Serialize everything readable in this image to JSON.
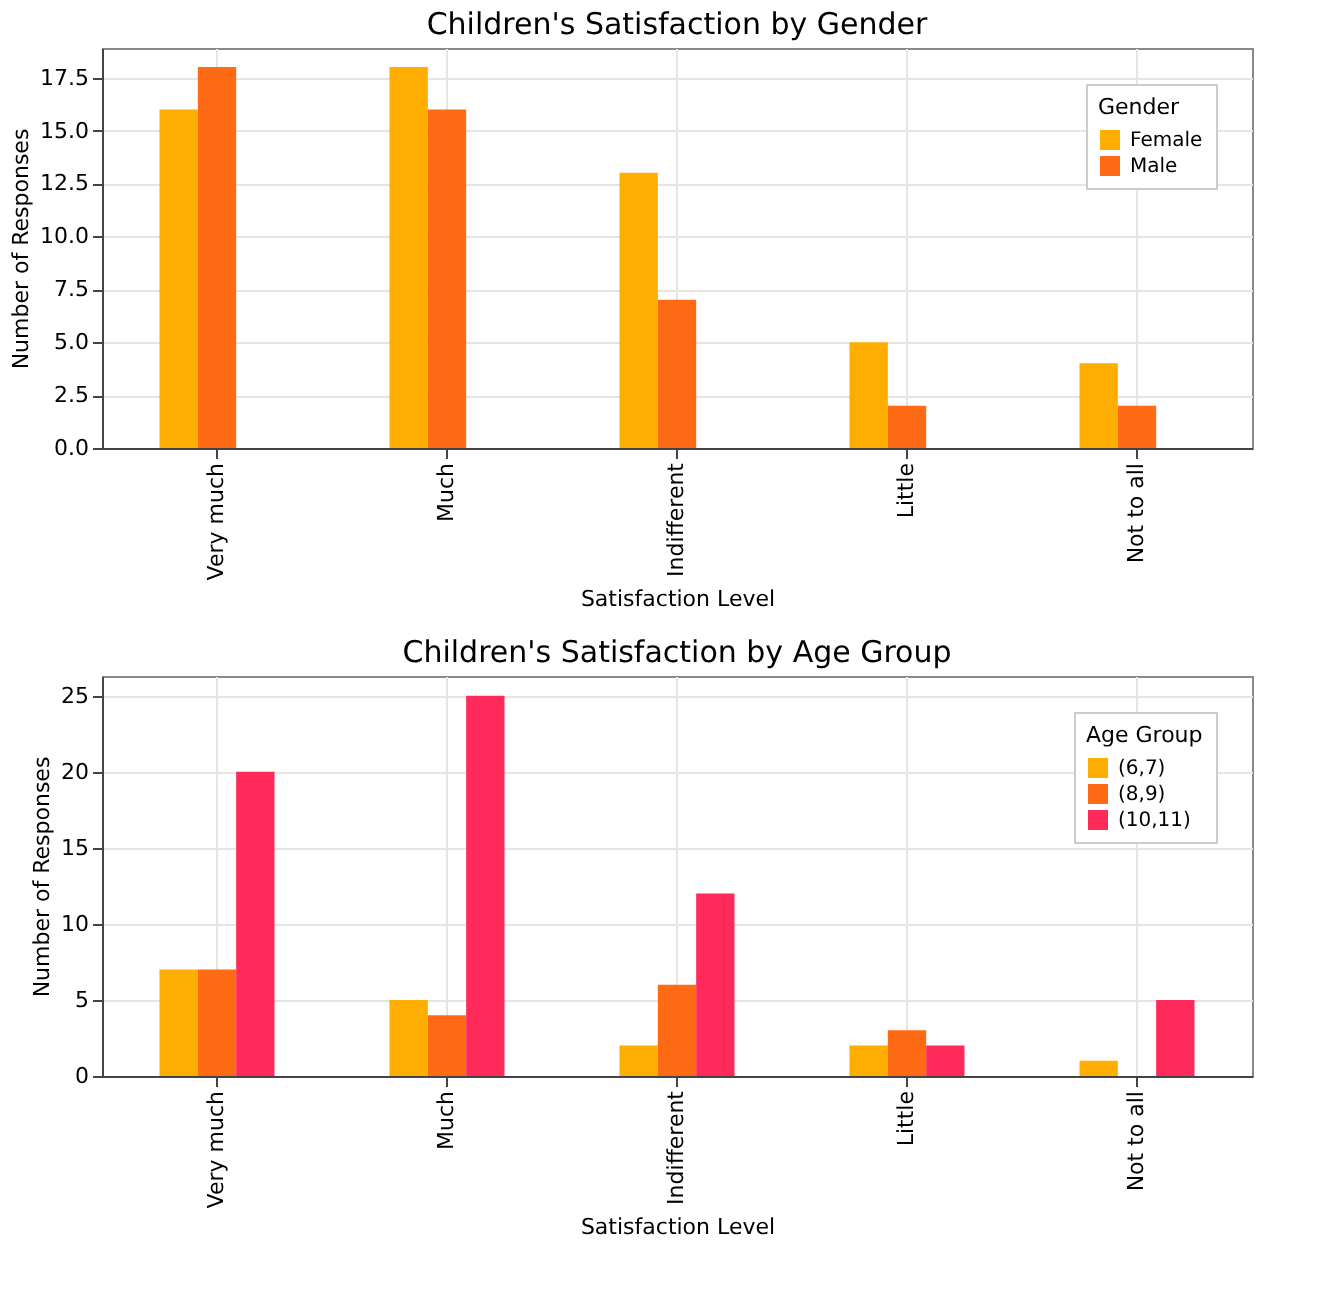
{
  "chart_data": [
    {
      "type": "bar",
      "title": "Children's Satisfaction by Gender",
      "xlabel": "Satisfaction Level",
      "ylabel": "Number of Responses",
      "legend_title": "Gender",
      "legend": "top right",
      "grid": true,
      "categories": [
        "Very much",
        "Much",
        "Indifferent",
        "Little",
        "Not to all"
      ],
      "ylim": [
        0,
        18.9
      ],
      "yticks": [
        {
          "value": 0,
          "label": "0.0"
        },
        {
          "value": 2.5,
          "label": "2.5"
        },
        {
          "value": 5,
          "label": "5.0"
        },
        {
          "value": 7.5,
          "label": "7.5"
        },
        {
          "value": 10,
          "label": "10.0"
        },
        {
          "value": 12.5,
          "label": "12.5"
        },
        {
          "value": 15,
          "label": "15.0"
        },
        {
          "value": 17.5,
          "label": "17.5"
        }
      ],
      "series": [
        {
          "name": "Female",
          "color": "#ffad00",
          "values": [
            16,
            18,
            13,
            5,
            4
          ]
        },
        {
          "name": "Male",
          "color": "#ff6a14",
          "values": [
            18,
            16,
            7,
            2,
            2
          ]
        }
      ]
    },
    {
      "type": "bar",
      "title": "Children's Satisfaction by Age Group",
      "xlabel": "Satisfaction Level",
      "ylabel": "Number of Responses",
      "legend_title": "Age Group",
      "legend": "top right",
      "grid": true,
      "categories": [
        "Very much",
        "Much",
        "Indifferent",
        "Little",
        "Not to all"
      ],
      "ylim": [
        0,
        26.3
      ],
      "yticks": [
        0,
        5,
        10,
        15,
        20,
        25
      ],
      "series": [
        {
          "name": "(6,7)",
          "color": "#ffad00",
          "values": [
            7,
            5,
            2,
            2,
            1
          ]
        },
        {
          "name": "(8,9)",
          "color": "#ff6a14",
          "values": [
            7,
            4,
            6,
            3,
            0
          ]
        },
        {
          "name": "(10,11)",
          "color": "#ff2a5a",
          "values": [
            20,
            25,
            12,
            2,
            5
          ]
        }
      ]
    }
  ]
}
